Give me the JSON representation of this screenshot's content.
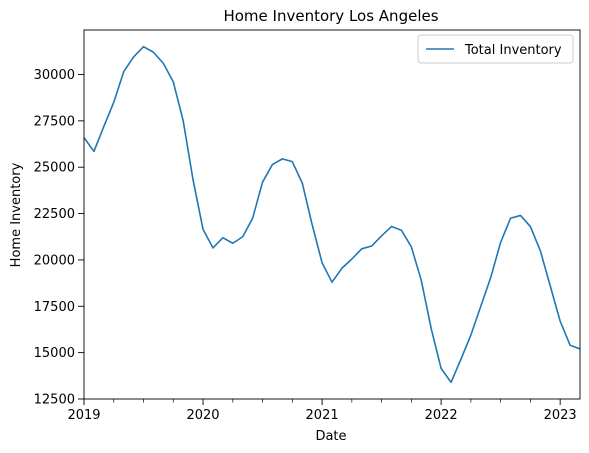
{
  "chart_data": {
    "type": "line",
    "title": "Home Inventory Los Angeles",
    "xlabel": "Date",
    "ylabel": "Home Inventory",
    "xlim": [
      "2019-01",
      "2023-03"
    ],
    "ylim": [
      12500,
      32400
    ],
    "x_ticks": [
      "2019",
      "2020",
      "2021",
      "2022",
      "2023"
    ],
    "y_ticks": [
      12500,
      15000,
      17500,
      20000,
      22500,
      25000,
      27500,
      30000
    ],
    "y_tick_labels": [
      "12500",
      "15000",
      "17500",
      "20000",
      "22500",
      "25000",
      "27500",
      "30000"
    ],
    "grid": false,
    "legend_position": "top-right",
    "line_color": "#1f77b4",
    "series": [
      {
        "name": "Total Inventory",
        "x": [
          "2019-01",
          "2019-02",
          "2019-03",
          "2019-04",
          "2019-05",
          "2019-06",
          "2019-07",
          "2019-08",
          "2019-09",
          "2019-10",
          "2019-11",
          "2019-12",
          "2020-01",
          "2020-02",
          "2020-03",
          "2020-04",
          "2020-05",
          "2020-06",
          "2020-07",
          "2020-08",
          "2020-09",
          "2020-10",
          "2020-11",
          "2020-12",
          "2021-01",
          "2021-02",
          "2021-03",
          "2021-04",
          "2021-05",
          "2021-06",
          "2021-07",
          "2021-08",
          "2021-09",
          "2021-10",
          "2021-11",
          "2021-12",
          "2022-01",
          "2022-02",
          "2022-03",
          "2022-04",
          "2022-05",
          "2022-06",
          "2022-07",
          "2022-08",
          "2022-09",
          "2022-10",
          "2022-11",
          "2022-12",
          "2023-01",
          "2023-02",
          "2023-03"
        ],
        "values": [
          26600,
          25850,
          27200,
          28500,
          30150,
          30950,
          31500,
          31200,
          30600,
          29600,
          27500,
          24300,
          21650,
          20650,
          21200,
          20900,
          21250,
          22250,
          24200,
          25150,
          25450,
          25300,
          24150,
          21900,
          19850,
          18800,
          19550,
          20050,
          20600,
          20750,
          21300,
          21800,
          21600,
          20700,
          18900,
          16300,
          14150,
          13400,
          14650,
          15950,
          17500,
          19050,
          20950,
          22250,
          22400,
          21800,
          20500,
          18600,
          16700,
          15400,
          15200
        ]
      }
    ]
  }
}
